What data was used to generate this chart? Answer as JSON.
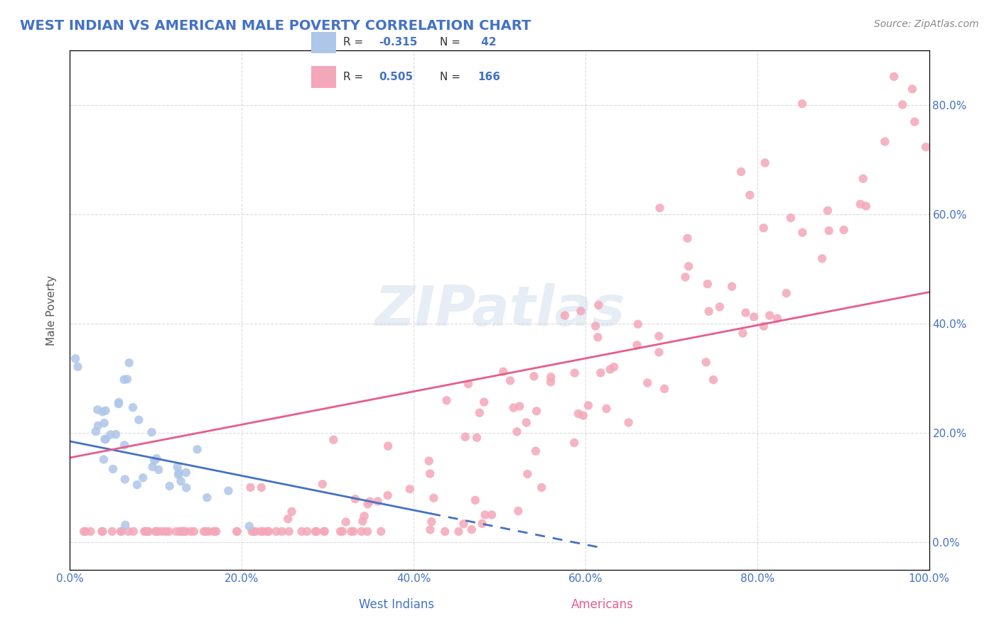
{
  "title": "WEST INDIAN VS AMERICAN MALE POVERTY CORRELATION CHART",
  "source": "Source: ZipAtlas.com",
  "ylabel": "Male Poverty",
  "xlim": [
    0.0,
    1.0
  ],
  "ylim": [
    -0.05,
    0.9
  ],
  "yticks_right": [
    0.0,
    0.2,
    0.4,
    0.6,
    0.8
  ],
  "ytick_labels_right": [
    "0.0%",
    "20.0%",
    "40.0%",
    "60.0%",
    "80.0%"
  ],
  "xticks": [
    0.0,
    0.2,
    0.4,
    0.6,
    0.8,
    1.0
  ],
  "xtick_labels": [
    "0.0%",
    "20.0%",
    "40.0%",
    "60.0%",
    "80.0%",
    "100.0%"
  ],
  "background_color": "#ffffff",
  "grid_color": "#cccccc",
  "title_color": "#4472c4",
  "west_indian_color": "#aec6e8",
  "american_color": "#f4a7b9",
  "west_indian_line_color": "#4472c4",
  "american_line_color": "#e85c8a",
  "west_indian_R": -0.315,
  "west_indian_N": 42,
  "american_R": 0.505,
  "american_N": 166,
  "legend_label_1": "West Indians",
  "legend_label_2": "Americans",
  "watermark": "ZIPatlas"
}
